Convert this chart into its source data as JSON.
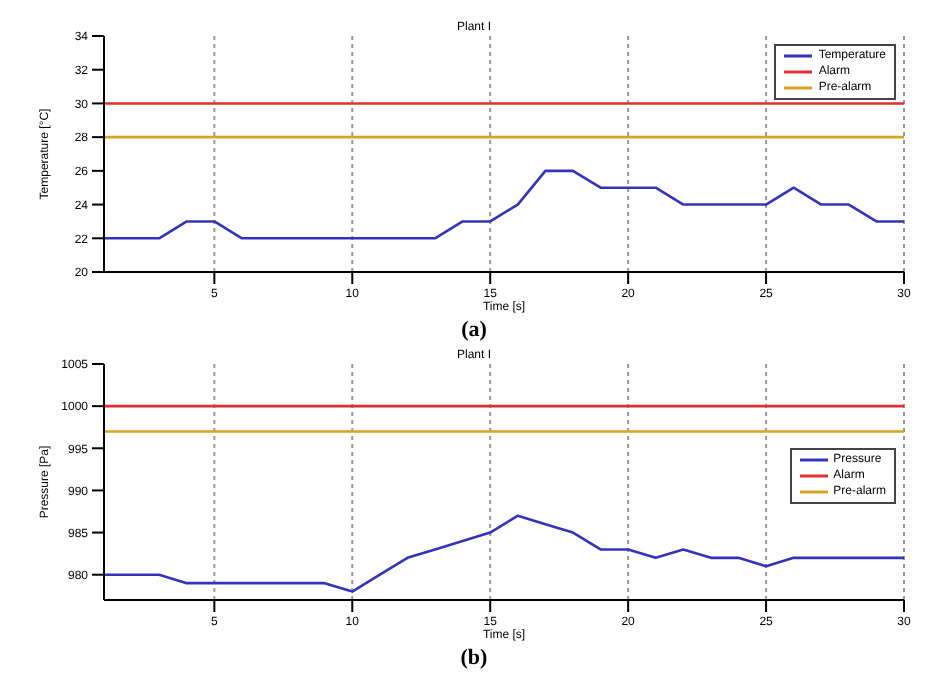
{
  "chart_data": [
    {
      "type": "line",
      "title": "Plant I",
      "xlabel": "Time [s]",
      "ylabel": "Temperature [°C]",
      "annotations": [
        "(a)"
      ],
      "x": [
        1,
        2,
        3,
        4,
        5,
        6,
        7,
        8,
        9,
        10,
        11,
        12,
        13,
        14,
        15,
        16,
        17,
        18,
        19,
        20,
        21,
        22,
        23,
        24,
        25,
        26,
        27,
        28,
        29,
        30
      ],
      "xlim": [
        1,
        30
      ],
      "xticks": [
        5,
        10,
        15,
        20,
        25,
        30
      ],
      "ylim": [
        20,
        34
      ],
      "yticks": [
        20,
        22,
        24,
        26,
        28,
        30,
        32,
        34
      ],
      "grid": "x",
      "legend": "top right",
      "marker": "none",
      "line_style": "solid",
      "series": [
        {
          "name": "Temperature",
          "color": "#3333bb",
          "values": [
            22,
            22,
            22,
            23,
            23,
            22,
            22,
            22,
            22,
            22,
            22,
            22,
            22,
            23,
            23,
            24,
            26,
            26,
            25,
            25,
            25,
            24,
            24,
            24,
            24,
            25,
            24,
            24,
            23,
            23
          ]
        }
      ],
      "ref_lines": [
        {
          "axis": "y",
          "value": 30,
          "label": "Alarm",
          "color": "#e03030"
        },
        {
          "axis": "y",
          "value": 28,
          "label": "Pre-alarm",
          "color": "#d9a520"
        }
      ]
    },
    {
      "type": "line",
      "title": "Plant I",
      "xlabel": "Time [s]",
      "ylabel": "Pressure [Pa]",
      "annotations": [
        "(b)"
      ],
      "x": [
        1,
        2,
        3,
        4,
        5,
        6,
        7,
        8,
        9,
        10,
        11,
        12,
        13,
        14,
        15,
        16,
        17,
        18,
        19,
        20,
        21,
        22,
        23,
        24,
        25,
        26,
        27,
        28,
        29,
        30
      ],
      "xlim": [
        1,
        30
      ],
      "xticks": [
        5,
        10,
        15,
        20,
        25,
        30
      ],
      "ylim": [
        977,
        1005
      ],
      "yticks": [
        980,
        985,
        990,
        995,
        1000,
        1005
      ],
      "grid": "x",
      "legend": "right",
      "marker": "none",
      "line_style": "solid",
      "series": [
        {
          "name": "Pressure",
          "color": "#3333bb",
          "values": [
            980,
            980,
            980,
            979,
            979,
            979,
            979,
            979,
            979,
            978,
            980,
            982,
            983,
            984,
            985,
            987,
            986,
            985,
            983,
            983,
            982,
            983,
            982,
            982,
            981,
            982,
            982,
            982,
            982,
            982
          ]
        }
      ],
      "ref_lines": [
        {
          "axis": "y",
          "value": 1000,
          "label": "Alarm",
          "color": "#e03030"
        },
        {
          "axis": "y",
          "value": 997,
          "label": "Pre-alarm",
          "color": "#d9a520"
        }
      ]
    }
  ]
}
